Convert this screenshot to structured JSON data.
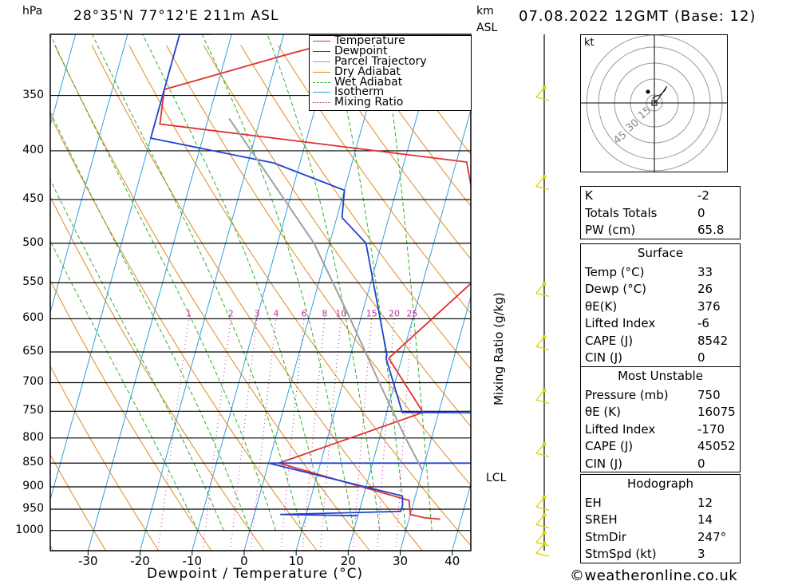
{
  "header": {
    "location": "28°35'N  77°12'E  211m  ASL",
    "datetime": "07.08.2022  12GMT  (Base: 12)",
    "pressure_unit": "hPa",
    "height_unit_line1": "km",
    "height_unit_line2": "ASL"
  },
  "axes": {
    "xlabel": "Dewpoint / Temperature (°C)",
    "right_label": "Mixing Ratio (g/kg)",
    "lcl_label": "LCL"
  },
  "legend": [
    {
      "label": "Temperature",
      "color": "#e03030",
      "style": "solid"
    },
    {
      "label": "Dewpoint",
      "color": "#2040d0",
      "style": "solid"
    },
    {
      "label": "Parcel Trajectory",
      "color": "#a0a0a0",
      "style": "solid"
    },
    {
      "label": "Dry Adiabat",
      "color": "#e08a20",
      "style": "solid"
    },
    {
      "label": "Wet Adiabat",
      "color": "#30b030",
      "style": "dashed"
    },
    {
      "label": "Isotherm",
      "color": "#30a0e0",
      "style": "solid"
    },
    {
      "label": "Mixing Ratio",
      "color": "#c03090",
      "style": "dotted"
    }
  ],
  "hodograph": {
    "unit": "kt",
    "ring_labels": [
      "15",
      "30",
      "45"
    ]
  },
  "table": {
    "indices": [
      {
        "key": "K",
        "value": "-2"
      },
      {
        "key": "Totals Totals",
        "value": "0"
      },
      {
        "key": "PW (cm)",
        "value": "65.8"
      }
    ],
    "surface_title": "Surface",
    "surface": [
      {
        "key": "Temp (°C)",
        "value": "33"
      },
      {
        "key": "Dewp (°C)",
        "value": "26"
      },
      {
        "key": "θE(K)",
        "value": "376"
      },
      {
        "key": "Lifted Index",
        "value": "-6"
      },
      {
        "key": "CAPE (J)",
        "value": "8542"
      },
      {
        "key": "CIN (J)",
        "value": "0"
      }
    ],
    "mu_title": "Most Unstable",
    "most_unstable": [
      {
        "key": "Pressure (mb)",
        "value": "750"
      },
      {
        "key": "θE (K)",
        "value": "16075"
      },
      {
        "key": "Lifted Index",
        "value": "-170"
      },
      {
        "key": "CAPE (J)",
        "value": "45052"
      },
      {
        "key": "CIN (J)",
        "value": "0"
      }
    ],
    "hodo_title": "Hodograph",
    "hodograph": [
      {
        "key": "EH",
        "value": "12"
      },
      {
        "key": "SREH",
        "value": "14"
      },
      {
        "key": "StmDir",
        "value": "247°"
      },
      {
        "key": "StmSpd (kt)",
        "value": "3"
      }
    ]
  },
  "footer": "©weatheronline.co.uk",
  "chart_data": {
    "type": "line",
    "title": "",
    "xlabel": "Dewpoint / Temperature (°C)",
    "ylabel": "hPa",
    "x_ticks": [
      -30,
      -20,
      -10,
      0,
      10,
      20,
      30,
      40
    ],
    "pressure_ticks": [
      350,
      400,
      450,
      500,
      550,
      600,
      650,
      700,
      750,
      800,
      850,
      900,
      950,
      1000
    ],
    "xlim": [
      -40,
      41
    ],
    "ylim_hpa": [
      1050,
      302
    ],
    "log_pressure": true,
    "skew_per_log10_hpa": 51,
    "grid": true,
    "mixing_ratio_labels": [
      "1",
      "2",
      "3",
      "4",
      "6",
      "8",
      "10",
      "15",
      "20",
      "25"
    ],
    "mixing_ratio_values": [
      1,
      2,
      3,
      4,
      6,
      8,
      10,
      15,
      20,
      25
    ],
    "isotherms_c": [
      -100,
      -90,
      -80,
      -70,
      -60,
      -50,
      -40,
      -30,
      -20,
      -10,
      0,
      10,
      20,
      30,
      40
    ],
    "dry_adiabats_c": [
      -40,
      -30,
      -20,
      -10,
      0,
      10,
      20,
      30,
      40,
      50,
      60,
      70,
      80,
      90,
      100,
      110,
      120
    ],
    "wet_adiabats_c": [
      -10,
      -5,
      0,
      5,
      10,
      15,
      20,
      25,
      30,
      35
    ],
    "series": [
      {
        "name": "Temperature",
        "color": "#e03030",
        "points": [
          [
            973,
            36
          ],
          [
            970,
            33
          ],
          [
            962,
            30
          ],
          [
            930,
            29
          ],
          [
            850,
            2
          ],
          [
            752,
            27
          ],
          [
            660,
            17.5
          ],
          [
            545,
            30
          ],
          [
            470,
            27.5
          ],
          [
            440,
            24.5
          ],
          [
            411,
            22
          ],
          [
            375,
            -39
          ],
          [
            345,
            -40
          ],
          [
            318,
            -19
          ],
          [
            302,
            -5
          ]
        ]
      },
      {
        "name": "Dewpoint",
        "color": "#2040d0",
        "points": [
          [
            965,
            20
          ],
          [
            962,
            5
          ],
          [
            955,
            28
          ],
          [
            940,
            28
          ],
          [
            920,
            27.5
          ],
          [
            850,
            0
          ],
          [
            850,
            41
          ],
          [
            753,
            41
          ],
          [
            752,
            23
          ],
          [
            660,
            17
          ],
          [
            655,
            17
          ],
          [
            500,
            7
          ],
          [
            470,
            1
          ],
          [
            440,
            0
          ],
          [
            412,
            -15
          ],
          [
            388,
            -40
          ],
          [
            330,
            -40
          ],
          [
            302,
            -40
          ],
          [
            302,
            -34
          ]
        ]
      },
      {
        "name": "Parcel Trajectory",
        "color": "#a0a0a0",
        "points": [
          [
            865,
            30
          ],
          [
            800,
            25
          ],
          [
            700,
            17
          ],
          [
            600,
            8
          ],
          [
            500,
            -3
          ],
          [
            400,
            -20
          ],
          [
            370,
            -26
          ]
        ]
      }
    ]
  },
  "hodograph_data": {
    "points_uv": [
      [
        -1,
        2
      ],
      [
        0,
        3
      ],
      [
        3,
        4
      ],
      [
        5,
        6
      ],
      [
        6,
        8
      ],
      [
        2,
        2
      ],
      [
        0,
        0
      ]
    ]
  },
  "wind_profile": {
    "levels_km": [
      0.2,
      0.5,
      1.0,
      1.5,
      3.0,
      4.5,
      6.0,
      7.5,
      10.5,
      13.0
    ]
  }
}
